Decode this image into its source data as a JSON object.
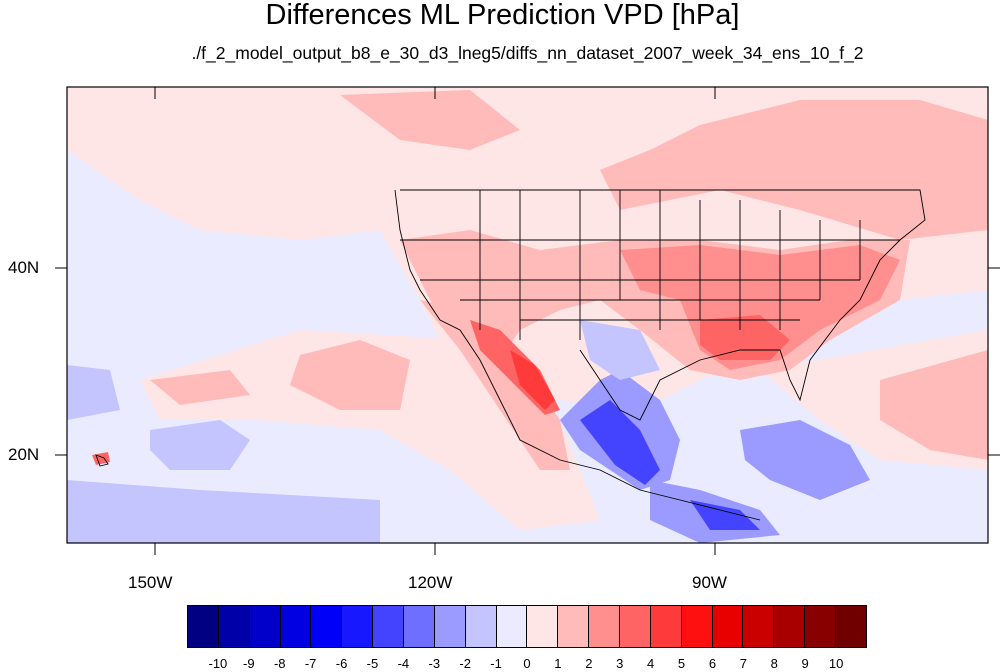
{
  "title": "Differences ML Prediction VPD [hPa]",
  "subtitle": "./f_2_model_output_b8_e_30_d3_lneg5/diffs_nn_dataset_2007_week_34_ens_10_f_2",
  "lat_labels": [
    "40N",
    "20N"
  ],
  "lon_labels": [
    "150W",
    "120W",
    "90W"
  ],
  "colorbar": {
    "labels": [
      "-10",
      "-9",
      "-8",
      "-7",
      "-6",
      "-5",
      "-4",
      "-3",
      "-2",
      "-1",
      "0",
      "1",
      "2",
      "3",
      "4",
      "5",
      "6",
      "7",
      "8",
      "9",
      "10"
    ],
    "colors": [
      "#000080",
      "#0000a8",
      "#0000c8",
      "#0000e0",
      "#0000f8",
      "#1818ff",
      "#4444ff",
      "#6e6eff",
      "#9a9aff",
      "#c4c4ff",
      "#ebebff",
      "#ffe6e6",
      "#ffbaba",
      "#ff8e8e",
      "#ff6464",
      "#ff3a3a",
      "#ff1010",
      "#e80000",
      "#c80000",
      "#a80000",
      "#880000",
      "#700000"
    ]
  }
}
